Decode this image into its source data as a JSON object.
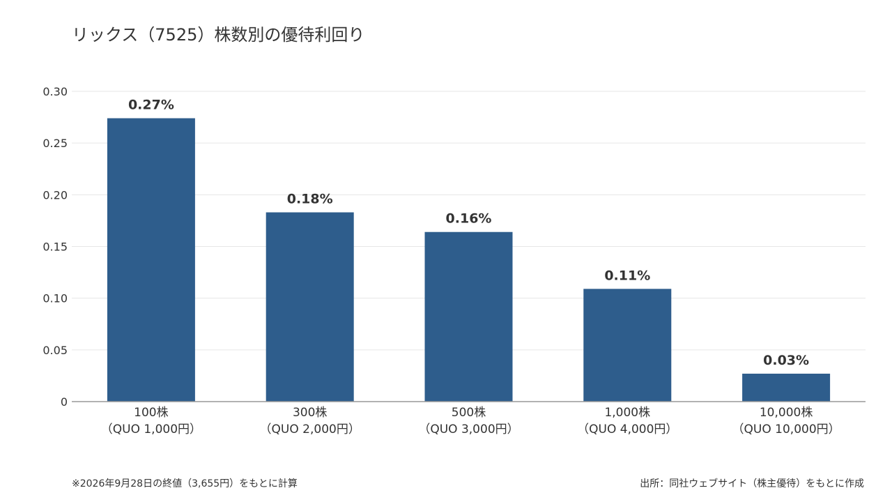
{
  "title": "リックス（7525）株数別の優待利回り",
  "footnote_left": "※2026年9月28日の終値（3,655円）をもとに計算",
  "footnote_right": "出所：同社ウェブサイト（株主優待）をもとに作成",
  "colors": {
    "bar": "#2e5d8c",
    "grid": "#e6e6e6",
    "axis": "#999999",
    "text": "#333333"
  },
  "chart_data": {
    "type": "bar",
    "categories": [
      [
        "100株",
        "（QUO 1,000円）"
      ],
      [
        "300株",
        "（QUO 2,000円）"
      ],
      [
        "500株",
        "（QUO 3,000円）"
      ],
      [
        "1,000株",
        "（QUO 4,000円）"
      ],
      [
        "10,000株",
        "（QUO 10,000円）"
      ]
    ],
    "values": [
      0.274,
      0.183,
      0.164,
      0.109,
      0.027
    ],
    "data_labels": [
      "0.27%",
      "0.18%",
      "0.16%",
      "0.11%",
      "0.03%"
    ],
    "yticks": [
      0,
      0.05,
      0.1,
      0.15,
      0.2,
      0.25,
      0.3
    ],
    "ytick_labels": [
      "0",
      "0.05",
      "0.10",
      "0.15",
      "0.20",
      "0.25",
      "0.30"
    ],
    "ylim": [
      0,
      0.3
    ],
    "grid": true
  }
}
